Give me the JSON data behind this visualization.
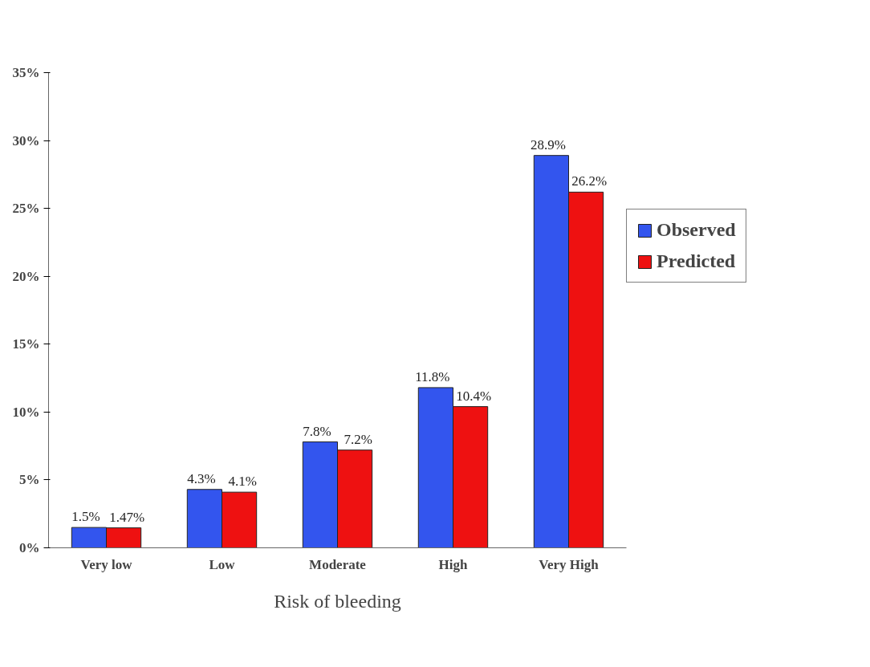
{
  "chart_data": {
    "type": "bar",
    "xlabel": "Risk of bleeding",
    "categories": [
      "Very low",
      "Low",
      "Moderate",
      "High",
      "Very High"
    ],
    "series": [
      {
        "name": "Observed",
        "color": "#3355ee",
        "values": [
          1.5,
          4.3,
          7.8,
          11.8,
          28.9
        ],
        "value_labels": [
          "1.5%",
          "4.3%",
          "7.8%",
          "11.8%",
          "28.9%"
        ]
      },
      {
        "name": "Predicted",
        "color": "#ee1111",
        "values": [
          1.47,
          4.1,
          7.2,
          10.4,
          26.2
        ],
        "value_labels": [
          "1.47%",
          "4.1%",
          "7.2%",
          "10.4%",
          "26.2%"
        ]
      }
    ],
    "ylim": [
      0,
      35
    ],
    "yticks": [
      {
        "value": 0,
        "label": "0%"
      },
      {
        "value": 5,
        "label": "5%"
      },
      {
        "value": 10,
        "label": "10%"
      },
      {
        "value": 15,
        "label": "15%"
      },
      {
        "value": 20,
        "label": "20%"
      },
      {
        "value": 25,
        "label": "25%"
      },
      {
        "value": 30,
        "label": "30%"
      },
      {
        "value": 35,
        "label": "35%"
      }
    ],
    "grid": false,
    "legend": "right"
  }
}
